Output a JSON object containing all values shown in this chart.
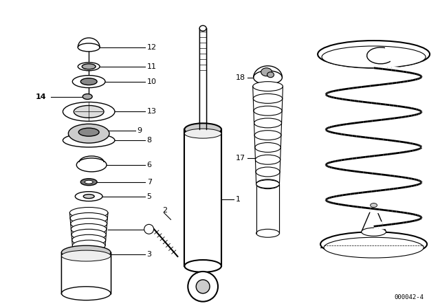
{
  "bg_color": "#ffffff",
  "line_color": "#000000",
  "diagram_code": "000042-4",
  "fig_w": 6.4,
  "fig_h": 4.48,
  "dpi": 100
}
